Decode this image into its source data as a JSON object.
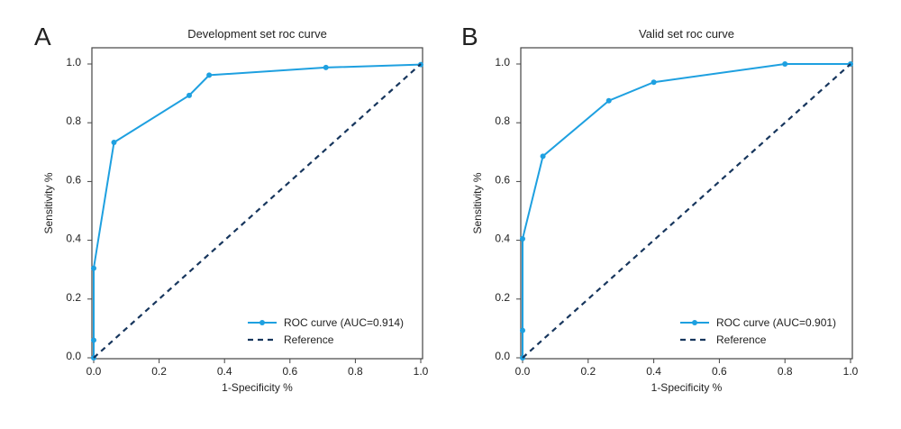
{
  "chart_data": [
    {
      "panel_label": "A",
      "type": "line",
      "title": "Development set roc curve",
      "xlabel": "1-Specificity %",
      "ylabel": "Sensitivity %",
      "xlim": [
        0,
        1
      ],
      "ylim": [
        0,
        1
      ],
      "xticks": [
        "0.0",
        "0.2",
        "0.4",
        "0.6",
        "0.8",
        "1.0"
      ],
      "yticks": [
        "0.0",
        "0.2",
        "0.4",
        "0.6",
        "0.8",
        "1.0"
      ],
      "grid": false,
      "legend_position": "bottom-right",
      "series": [
        {
          "name": "ROC curve (AUC=0.914)",
          "style": "solid-markers",
          "color": "#1ea0e0",
          "x": [
            0,
            0,
            0,
            0.062,
            0.292,
            0.353,
            0.71,
            1.0
          ],
          "y": [
            0,
            0.06,
            0.305,
            0.733,
            0.893,
            0.962,
            0.988,
            0.998
          ]
        },
        {
          "name": "Reference",
          "style": "dashed",
          "color": "#17365d",
          "x": [
            0,
            1
          ],
          "y": [
            0,
            1
          ]
        }
      ]
    },
    {
      "panel_label": "B",
      "type": "line",
      "title": "Valid set roc curve",
      "xlabel": "1-Specificity %",
      "ylabel": "Sensitivity %",
      "xlim": [
        0,
        1
      ],
      "ylim": [
        0,
        1
      ],
      "xticks": [
        "0.0",
        "0.2",
        "0.4",
        "0.6",
        "0.8",
        "1.0"
      ],
      "yticks": [
        "0.0",
        "0.2",
        "0.4",
        "0.6",
        "0.8",
        "1.0"
      ],
      "grid": false,
      "legend_position": "bottom-right",
      "series": [
        {
          "name": "ROC curve (AUC=0.901)",
          "style": "solid-markers",
          "color": "#1ea0e0",
          "x": [
            0,
            0,
            0,
            0.062,
            0.263,
            0.4,
            0.8,
            1.0
          ],
          "y": [
            0,
            0.093,
            0.405,
            0.686,
            0.875,
            0.938,
            1.0,
            1.0
          ]
        },
        {
          "name": "Reference",
          "style": "dashed",
          "color": "#17365d",
          "x": [
            0,
            1
          ],
          "y": [
            0,
            1
          ]
        }
      ]
    }
  ]
}
